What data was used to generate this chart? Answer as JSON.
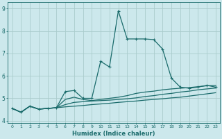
{
  "xlabel": "Humidex (Indice chaleur)",
  "bg_color": "#cce8ec",
  "grid_color": "#aacccc",
  "line_color": "#1a6b6b",
  "xlim": [
    -0.5,
    23.5
  ],
  "ylim": [
    3.9,
    9.3
  ],
  "yticks": [
    4,
    5,
    6,
    7,
    8,
    9
  ],
  "xticks": [
    0,
    1,
    2,
    3,
    4,
    5,
    6,
    7,
    8,
    9,
    10,
    11,
    12,
    13,
    14,
    15,
    16,
    17,
    18,
    19,
    20,
    21,
    22,
    23
  ],
  "lines": [
    {
      "x": [
        0,
        1,
        2,
        3,
        4,
        5,
        6,
        7,
        8,
        9,
        10,
        11,
        12,
        13,
        14,
        15,
        16,
        17,
        18,
        19,
        20,
        21,
        22,
        23
      ],
      "y": [
        4.55,
        4.38,
        4.65,
        4.52,
        4.55,
        4.58,
        5.3,
        5.35,
        5.0,
        5.0,
        6.65,
        6.4,
        8.9,
        7.65,
        7.65,
        7.65,
        7.62,
        7.2,
        5.9,
        5.5,
        5.45,
        5.5,
        5.58,
        5.5
      ],
      "marker": "+",
      "lw": 0.9
    },
    {
      "x": [
        0,
        1,
        2,
        3,
        4,
        5,
        6,
        7,
        8,
        9,
        10,
        11,
        12,
        13,
        14,
        15,
        16,
        17,
        18,
        19,
        20,
        21,
        22,
        23
      ],
      "y": [
        4.55,
        4.38,
        4.65,
        4.52,
        4.55,
        4.58,
        4.95,
        5.05,
        4.95,
        4.9,
        4.95,
        5.0,
        5.05,
        5.12,
        5.22,
        5.28,
        5.32,
        5.38,
        5.42,
        5.45,
        5.48,
        5.52,
        5.56,
        5.58
      ],
      "marker": null,
      "lw": 0.9
    },
    {
      "x": [
        0,
        1,
        2,
        3,
        4,
        5,
        6,
        7,
        8,
        9,
        10,
        11,
        12,
        13,
        14,
        15,
        16,
        17,
        18,
        19,
        20,
        21,
        22,
        23
      ],
      "y": [
        4.55,
        4.38,
        4.65,
        4.52,
        4.55,
        4.58,
        4.72,
        4.82,
        4.85,
        4.88,
        4.9,
        4.92,
        4.95,
        4.98,
        5.02,
        5.08,
        5.12,
        5.18,
        5.22,
        5.28,
        5.32,
        5.38,
        5.42,
        5.46
      ],
      "marker": null,
      "lw": 0.9
    },
    {
      "x": [
        0,
        1,
        2,
        3,
        4,
        5,
        6,
        7,
        8,
        9,
        10,
        11,
        12,
        13,
        14,
        15,
        16,
        17,
        18,
        19,
        20,
        21,
        22,
        23
      ],
      "y": [
        4.55,
        4.38,
        4.65,
        4.52,
        4.55,
        4.58,
        4.62,
        4.65,
        4.68,
        4.72,
        4.75,
        4.78,
        4.82,
        4.85,
        4.88,
        4.92,
        4.95,
        4.98,
        5.02,
        5.05,
        5.1,
        5.15,
        5.2,
        5.25
      ],
      "marker": null,
      "lw": 0.9
    }
  ]
}
